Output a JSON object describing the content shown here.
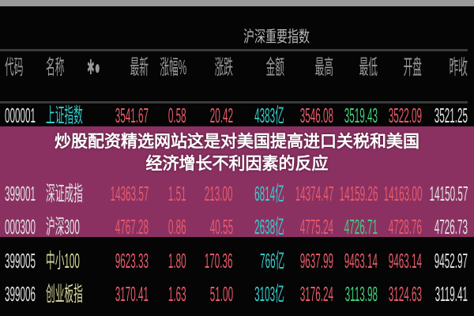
{
  "panel_title": "沪深重要指数",
  "columns": [
    "代码",
    "名称",
    "✱●",
    "最新",
    "涨幅%",
    "涨跌",
    "金额",
    "最高",
    "最低",
    "开盘",
    "昨收"
  ],
  "rows": [
    {
      "code": "000001",
      "name": "上证指数",
      "last": "3541.67",
      "pct": "0.58",
      "chg": "20.42",
      "amount": "4383亿",
      "high": "3546.08",
      "low": "3519.43",
      "open": "3522.09",
      "prev": "3521.25"
    },
    {
      "code": "399001",
      "name": "深证成指",
      "last": "14363.57",
      "pct": "1.51",
      "chg": "213.00",
      "amount": "6814亿",
      "high": "14374.47",
      "low": "14159.26",
      "open": "14163.00",
      "prev": "14150.57"
    },
    {
      "code": "000300",
      "name": "沪深300",
      "last": "4767.28",
      "pct": "0.86",
      "chg": "40.55",
      "amount": "2638亿",
      "high": "4775.24",
      "low": "4726.71",
      "open": "4728.76",
      "prev": "4726.73"
    },
    {
      "code": "399005",
      "name": "中小100",
      "last": "9623.33",
      "pct": "1.80",
      "chg": "170.36",
      "amount": "766亿",
      "high": "9637.99",
      "low": "9463.14",
      "open": "9463.14",
      "prev": "9452.97"
    },
    {
      "code": "399006",
      "name": "创业板指",
      "last": "3170.41",
      "pct": "1.63",
      "chg": "51.00",
      "amount": "3103亿",
      "high": "3176.24",
      "low": "3113.98",
      "open": "3124.63",
      "prev": "3119.41"
    }
  ],
  "overlay": {
    "line1": "炒股配资精选网站这是对美国提高进口关税和美国",
    "line2": "经济增长不利因素的反应"
  },
  "colors": {
    "up": "#e85a6a",
    "down": "#3fd07a",
    "amount": "#35cccc",
    "band": "#aa3c78"
  }
}
